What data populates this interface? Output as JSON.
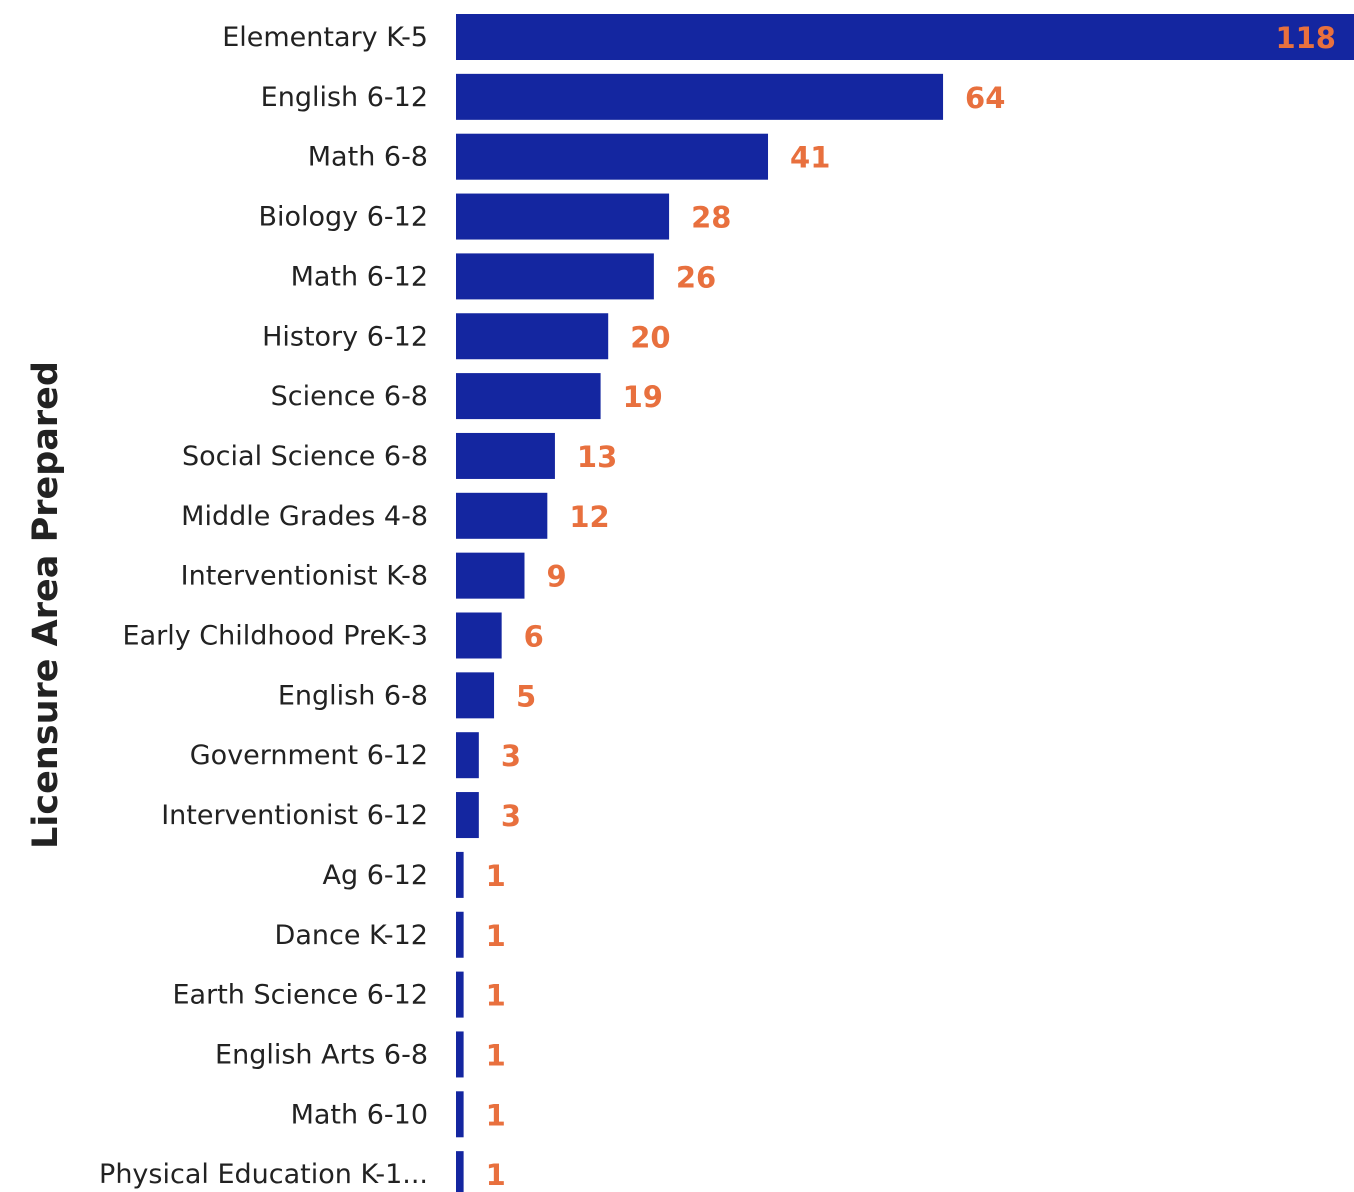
{
  "chart_data": {
    "type": "bar",
    "orientation": "horizontal",
    "ylabel": "Licensure Area Prepared",
    "xlabel": "",
    "xlim": [
      0,
      118
    ],
    "grid": false,
    "legend": "none",
    "bar_color": "#1426a0",
    "label_color": "#e8703e",
    "inside_label_color": "#e8703e",
    "categories": [
      "Elementary K-5",
      "English 6-12",
      "Math 6-8",
      "Biology 6-12",
      "Math 6-12",
      "History 6-12",
      "Science 6-8",
      "Social Science 6-8",
      "Middle Grades 4-8",
      "Interventionist K-8",
      "Early Childhood PreK-3",
      "English 6-8",
      "Government 6-12",
      "Interventionist 6-12",
      "Ag 6-12",
      "Dance K-12",
      "Earth Science 6-12",
      "English Arts 6-8",
      "Math 6-10",
      "Physical Education K-1..."
    ],
    "values": [
      118,
      64,
      41,
      28,
      26,
      20,
      19,
      13,
      12,
      9,
      6,
      5,
      3,
      3,
      1,
      1,
      1,
      1,
      1,
      1
    ]
  }
}
